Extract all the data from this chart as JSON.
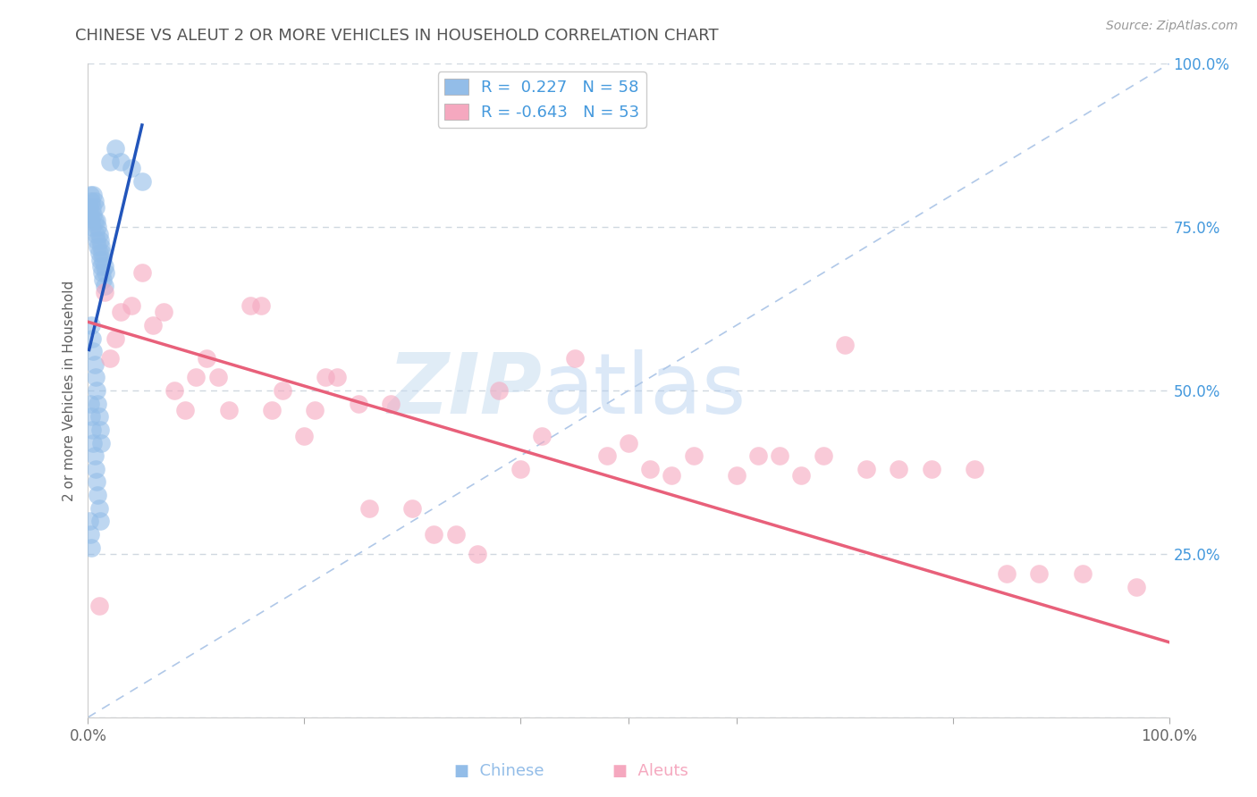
{
  "title": "CHINESE VS ALEUT 2 OR MORE VEHICLES IN HOUSEHOLD CORRELATION CHART",
  "source": "Source: ZipAtlas.com",
  "ylabel": "2 or more Vehicles in Household",
  "watermark_zip": "ZIP",
  "watermark_atlas": "atlas",
  "legend_chinese": "R =  0.227   N = 58",
  "legend_aleuts": "R = -0.643   N = 53",
  "xlim": [
    0.0,
    1.0
  ],
  "ylim": [
    0.0,
    1.0
  ],
  "chinese_color": "#93bde8",
  "aleuts_color": "#f5a8bf",
  "chinese_line_color": "#2255bb",
  "aleuts_line_color": "#e8607a",
  "diagonal_color": "#b0c8e8",
  "background_color": "#ffffff",
  "grid_color": "#d0d8e0",
  "title_color": "#555555",
  "source_color": "#999999",
  "right_tick_color": "#4499dd",
  "legend_text_color": "#4499dd",
  "chinese_x": [
    0.001,
    0.002,
    0.002,
    0.003,
    0.003,
    0.004,
    0.004,
    0.005,
    0.005,
    0.006,
    0.006,
    0.007,
    0.007,
    0.008,
    0.008,
    0.009,
    0.009,
    0.01,
    0.01,
    0.011,
    0.011,
    0.012,
    0.012,
    0.013,
    0.013,
    0.014,
    0.014,
    0.015,
    0.015,
    0.016,
    0.003,
    0.004,
    0.005,
    0.006,
    0.007,
    0.008,
    0.009,
    0.01,
    0.011,
    0.012,
    0.002,
    0.003,
    0.004,
    0.005,
    0.006,
    0.007,
    0.008,
    0.009,
    0.01,
    0.011,
    0.001,
    0.002,
    0.003,
    0.02,
    0.025,
    0.03,
    0.04,
    0.05
  ],
  "chinese_y": [
    0.78,
    0.8,
    0.77,
    0.79,
    0.76,
    0.78,
    0.75,
    0.8,
    0.77,
    0.79,
    0.76,
    0.78,
    0.74,
    0.76,
    0.73,
    0.75,
    0.72,
    0.74,
    0.71,
    0.73,
    0.7,
    0.72,
    0.69,
    0.71,
    0.68,
    0.7,
    0.67,
    0.69,
    0.66,
    0.68,
    0.6,
    0.58,
    0.56,
    0.54,
    0.52,
    0.5,
    0.48,
    0.46,
    0.44,
    0.42,
    0.48,
    0.46,
    0.44,
    0.42,
    0.4,
    0.38,
    0.36,
    0.34,
    0.32,
    0.3,
    0.3,
    0.28,
    0.26,
    0.85,
    0.87,
    0.85,
    0.84,
    0.82
  ],
  "aleuts_x": [
    0.01,
    0.015,
    0.02,
    0.025,
    0.03,
    0.04,
    0.05,
    0.06,
    0.07,
    0.08,
    0.09,
    0.1,
    0.11,
    0.12,
    0.13,
    0.15,
    0.16,
    0.17,
    0.18,
    0.2,
    0.21,
    0.22,
    0.23,
    0.25,
    0.26,
    0.28,
    0.3,
    0.32,
    0.34,
    0.36,
    0.38,
    0.4,
    0.42,
    0.45,
    0.48,
    0.5,
    0.52,
    0.54,
    0.56,
    0.6,
    0.62,
    0.64,
    0.66,
    0.68,
    0.7,
    0.72,
    0.75,
    0.78,
    0.82,
    0.85,
    0.88,
    0.92,
    0.97
  ],
  "aleuts_y": [
    0.17,
    0.65,
    0.55,
    0.58,
    0.62,
    0.63,
    0.68,
    0.6,
    0.62,
    0.5,
    0.47,
    0.52,
    0.55,
    0.52,
    0.47,
    0.63,
    0.63,
    0.47,
    0.5,
    0.43,
    0.47,
    0.52,
    0.52,
    0.48,
    0.32,
    0.48,
    0.32,
    0.28,
    0.28,
    0.25,
    0.5,
    0.38,
    0.43,
    0.55,
    0.4,
    0.42,
    0.38,
    0.37,
    0.4,
    0.37,
    0.4,
    0.4,
    0.37,
    0.4,
    0.57,
    0.38,
    0.38,
    0.38,
    0.38,
    0.22,
    0.22,
    0.22,
    0.2
  ],
  "aleuts_line_x": [
    0.0,
    1.0
  ],
  "aleuts_line_y": [
    0.605,
    0.115
  ]
}
